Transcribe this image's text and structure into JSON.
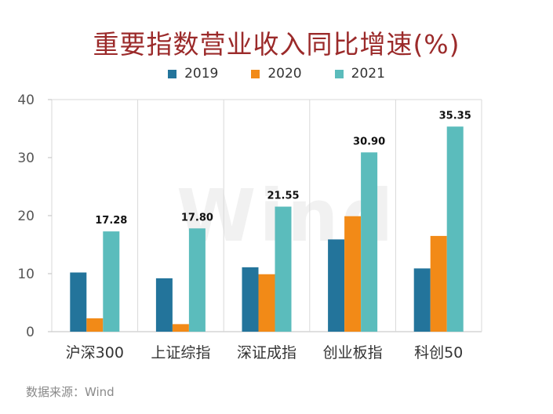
{
  "title": "重要指数营业收入同比增速(%)",
  "source": "数据来源：Wind",
  "watermark": "Wind",
  "colors": {
    "2019": "#23749b",
    "2020": "#f28a17",
    "2021": "#5bbcbc",
    "grid": "#d9d9d9",
    "title": "#9b2a2a"
  },
  "chart_data": {
    "type": "bar",
    "title": "重要指数营业收入同比增速(%)",
    "xlabel": "",
    "ylabel": "",
    "ylim": [
      0,
      40
    ],
    "yticks": [
      0,
      10,
      20,
      30,
      40
    ],
    "categories": [
      "沪深300",
      "上证综指",
      "深证成指",
      "创业板指",
      "科创50"
    ],
    "series": [
      {
        "name": "2019",
        "values": [
          10.2,
          9.2,
          11.1,
          15.9,
          10.9
        ]
      },
      {
        "name": "2020",
        "values": [
          2.3,
          1.3,
          9.9,
          19.9,
          16.5
        ]
      },
      {
        "name": "2021",
        "values": [
          17.28,
          17.8,
          21.55,
          30.9,
          35.35
        ]
      }
    ],
    "data_labels": {
      "series": "2021",
      "labels": [
        "17.28",
        "17.80",
        "21.55",
        "30.90",
        "35.35"
      ]
    },
    "legend_position": "top-center",
    "grid": "vertical-category-separators"
  }
}
